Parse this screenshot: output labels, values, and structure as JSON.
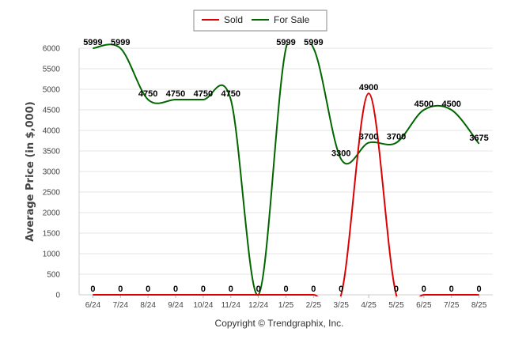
{
  "chart_data": {
    "type": "line",
    "categories": [
      "6/24",
      "7/24",
      "8/24",
      "9/24",
      "10/24",
      "11/24",
      "12/24",
      "1/25",
      "2/25",
      "3/25",
      "4/25",
      "5/25",
      "6/25",
      "7/25",
      "8/25"
    ],
    "series": [
      {
        "name": "Sold",
        "color": "#dd0000",
        "values": [
          0,
          0,
          0,
          0,
          0,
          0,
          0,
          0,
          0,
          0,
          4900,
          0,
          0,
          0,
          0
        ]
      },
      {
        "name": "For Sale",
        "color": "#006600",
        "values": [
          5999,
          5999,
          4750,
          4750,
          4750,
          4750,
          0,
          5999,
          5999,
          3300,
          3700,
          3700,
          4500,
          4500,
          3675
        ]
      }
    ],
    "ylabel": "Average Price (in $,000)",
    "xlabel": "",
    "ylim": [
      0,
      6000
    ],
    "yticks": [
      0,
      500,
      1000,
      1500,
      2000,
      2500,
      3000,
      3500,
      4000,
      4500,
      5000,
      5500,
      6000
    ],
    "grid": true,
    "legend_position": "top-center"
  },
  "footer": "Copyright © Trendgraphix, Inc."
}
